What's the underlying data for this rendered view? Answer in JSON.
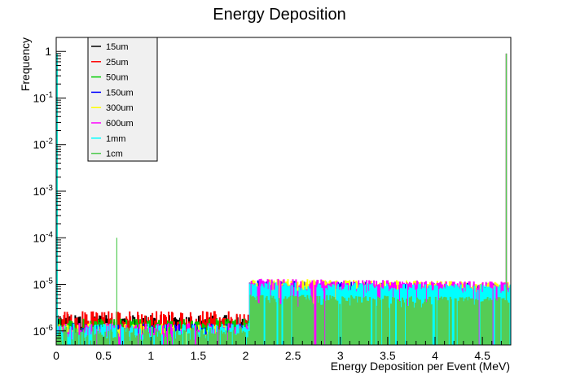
{
  "chart_data": {
    "type": "line",
    "title": "Energy Deposition",
    "xlabel": "Energy Deposition per Event (MeV)",
    "ylabel": "Frequency",
    "xlim": [
      0,
      4.8
    ],
    "ylim": [
      5e-07,
      2
    ],
    "yscale": "log",
    "x_ticks": [
      "0",
      "0.5",
      "1",
      "1.5",
      "2",
      "2.5",
      "3",
      "3.5",
      "4",
      "4.5"
    ],
    "y_ticks": [
      {
        "base": "1",
        "exp": ""
      },
      {
        "base": "10",
        "exp": "-1"
      },
      {
        "base": "10",
        "exp": "-2"
      },
      {
        "base": "10",
        "exp": "-3"
      },
      {
        "base": "10",
        "exp": "-4"
      },
      {
        "base": "10",
        "exp": "-5"
      },
      {
        "base": "10",
        "exp": "-6"
      }
    ],
    "legend_position": "top-left",
    "series": [
      {
        "name": "15um",
        "color": "#000000",
        "peak_x": 0.0,
        "peak_y": 0.9,
        "low_level": 1.8e-06,
        "high_level": 2e-06,
        "high_min": 1.5e-06
      },
      {
        "name": "25um",
        "color": "#ff0000",
        "peak_x": 0.0,
        "peak_y": 0.9,
        "low_level": 2.2e-06,
        "high_level": 3e-06,
        "high_min": 1.7e-06
      },
      {
        "name": "50um",
        "color": "#00cc00",
        "peak_x": 0.0,
        "peak_y": 0.9,
        "low_level": 1.5e-06,
        "high_level": 8e-06,
        "high_min": 3e-06
      },
      {
        "name": "150um",
        "color": "#0000ff",
        "peak_x": 4.77,
        "peak_y": 0.9,
        "low_level": 1.2e-06,
        "high_level": 1.2e-05,
        "high_min": 5e-06
      },
      {
        "name": "300um",
        "color": "#ffff00",
        "peak_x": 4.77,
        "peak_y": 0.9,
        "low_level": 1.2e-06,
        "high_level": 1.3e-05,
        "high_min": 6e-06
      },
      {
        "name": "600um",
        "color": "#ff00ff",
        "peak_x": 4.77,
        "peak_y": 0.9,
        "low_level": 1.2e-06,
        "high_level": 1.3e-05,
        "high_min": 6e-06
      },
      {
        "name": "1mm",
        "color": "#00ffff",
        "peak_x": 0.0,
        "peak_y": 0.9,
        "low_level": 1.2e-06,
        "high_level": 1.1e-05,
        "high_min": 6e-06
      },
      {
        "name": "1cm",
        "color": "#55cc55",
        "peak_x": 4.77,
        "peak_y": 0.9,
        "low_level": 1e-06,
        "high_level": 6e-06,
        "high_min": 3e-06
      }
    ],
    "annotations": [
      {
        "x": 0.64,
        "y": 0.0001
      }
    ]
  }
}
